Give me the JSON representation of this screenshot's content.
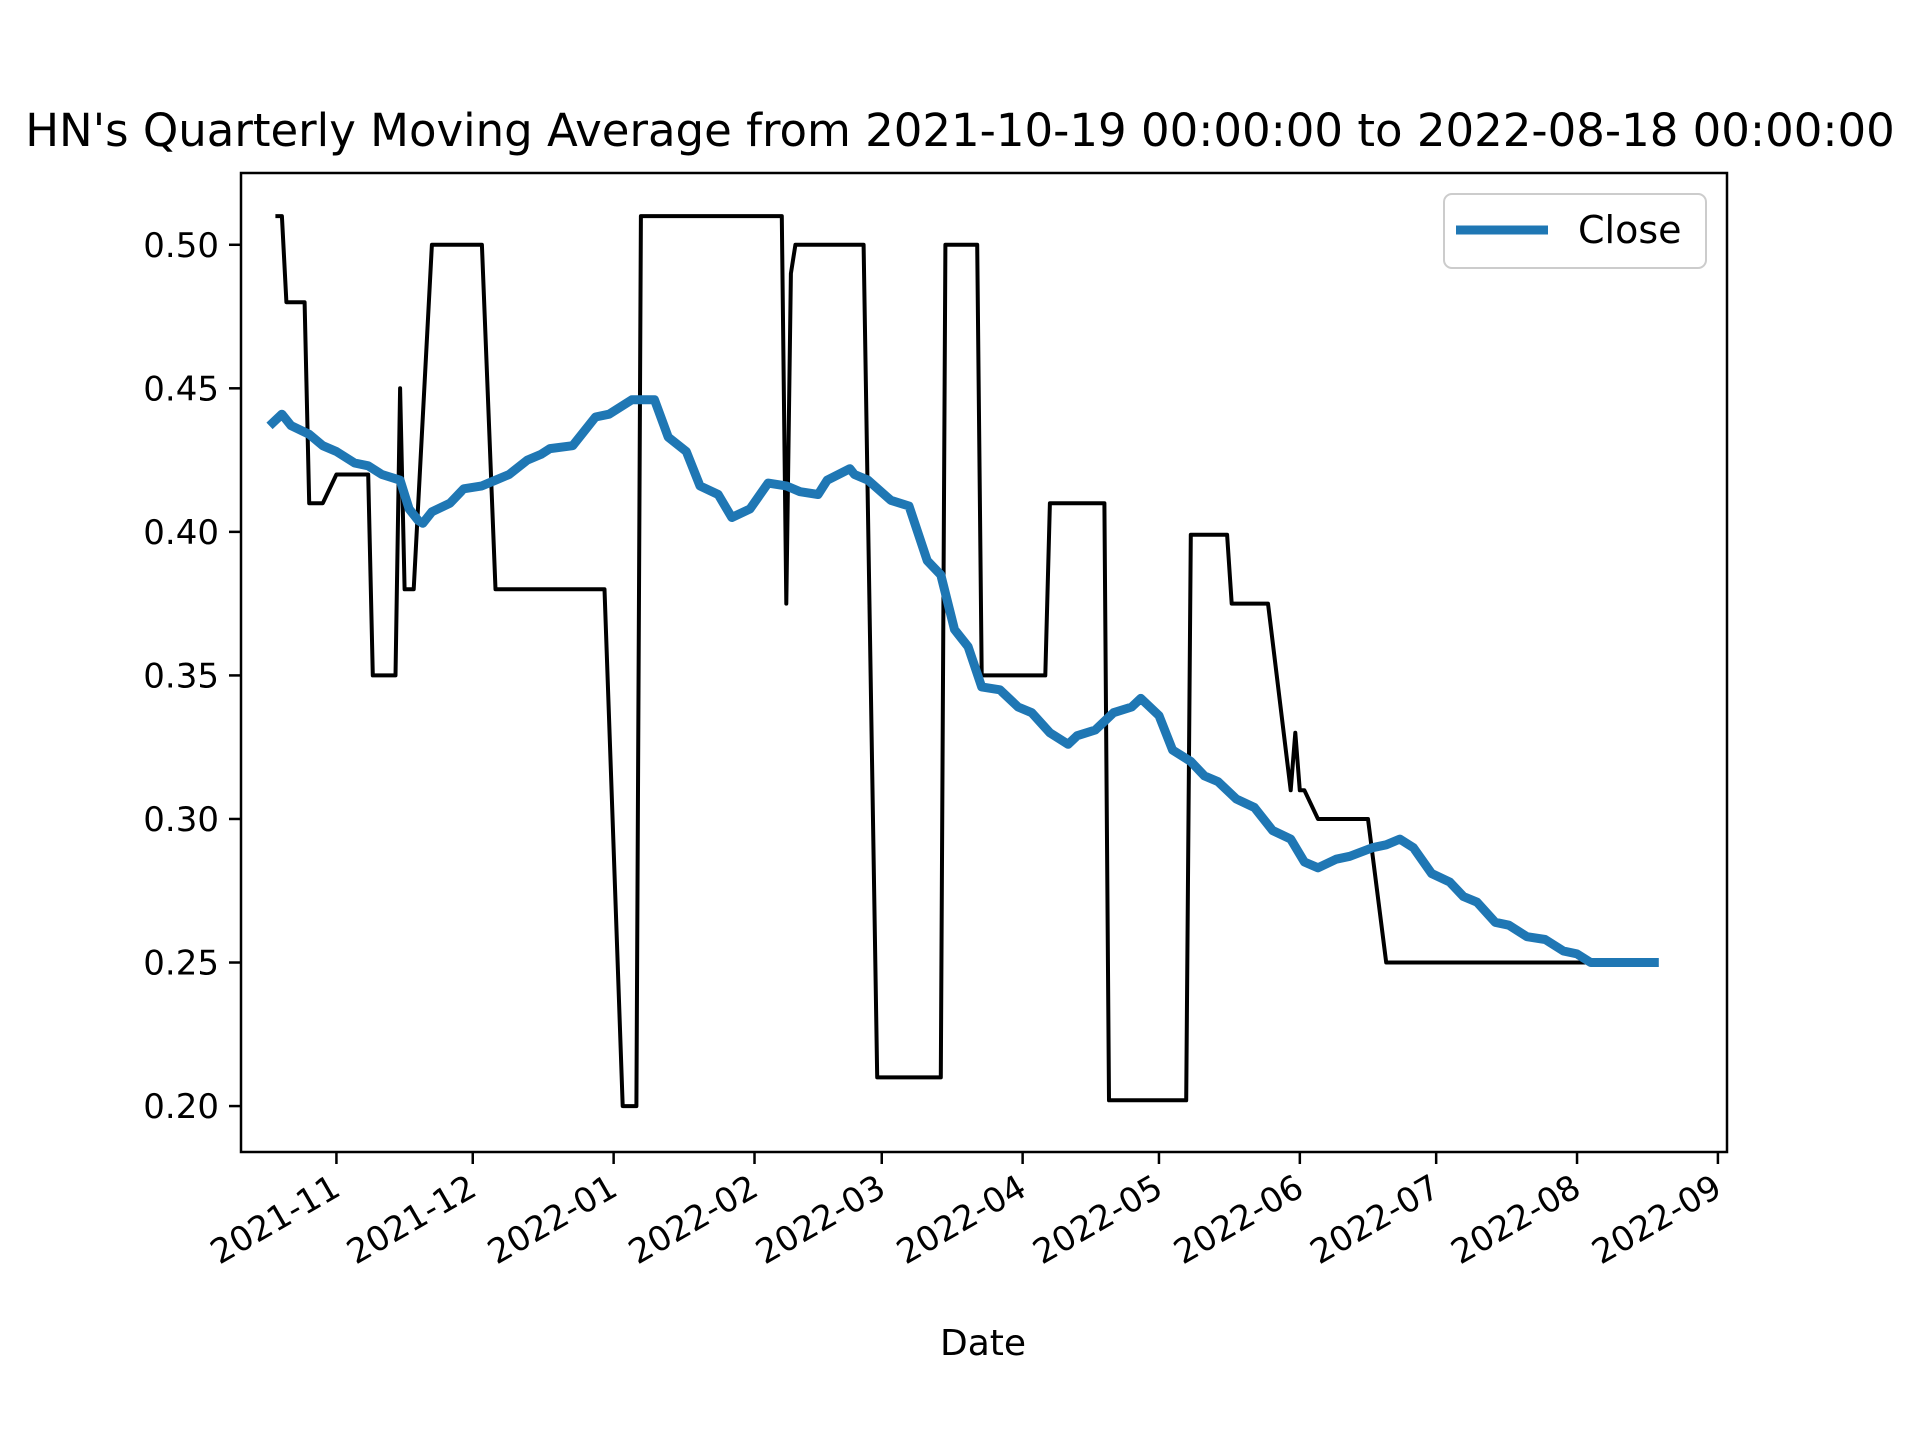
{
  "chart_data": {
    "type": "line",
    "title": "HN's Quarterly Moving Average from 2021-10-19 00:00:00 to 2022-08-18 00:00:00",
    "xlabel": "Date",
    "ylabel": "",
    "xlim": [
      "2021-10-11",
      "2022-09-03"
    ],
    "ylim": [
      0.184,
      0.525
    ],
    "yticks": [
      0.2,
      0.25,
      0.3,
      0.35,
      0.4,
      0.45,
      0.5
    ],
    "ytick_labels": [
      "0.20",
      "0.25",
      "0.30",
      "0.35",
      "0.40",
      "0.45",
      "0.50"
    ],
    "xticks": [
      "2021-11-01",
      "2021-12-01",
      "2022-01-01",
      "2022-02-01",
      "2022-03-01",
      "2022-04-01",
      "2022-05-01",
      "2022-06-01",
      "2022-07-01",
      "2022-08-01",
      "2022-09-01"
    ],
    "xtick_labels": [
      "2021-11",
      "2021-12",
      "2022-01",
      "2022-02",
      "2022-03",
      "2022-04",
      "2022-05",
      "2022-06",
      "2022-07",
      "2022-08",
      "2022-09"
    ],
    "grid": false,
    "legend_position": "upper right",
    "series": [
      {
        "name": "",
        "color": "#000000",
        "legend": false,
        "points": [
          [
            "2021-10-19",
            0.51
          ],
          [
            "2021-10-20",
            0.51
          ],
          [
            "2021-10-21",
            0.48
          ],
          [
            "2021-10-25",
            0.48
          ],
          [
            "2021-10-26",
            0.41
          ],
          [
            "2021-10-29",
            0.41
          ],
          [
            "2021-11-01",
            0.42
          ],
          [
            "2021-11-08",
            0.42
          ],
          [
            "2021-11-09",
            0.35
          ],
          [
            "2021-11-14",
            0.35
          ],
          [
            "2021-11-15",
            0.45
          ],
          [
            "2021-11-16",
            0.38
          ],
          [
            "2021-11-18",
            0.38
          ],
          [
            "2021-11-22",
            0.5
          ],
          [
            "2021-12-03",
            0.5
          ],
          [
            "2021-12-06",
            0.38
          ],
          [
            "2021-12-30",
            0.38
          ],
          [
            "2022-01-03",
            0.2
          ],
          [
            "2022-01-06",
            0.2
          ],
          [
            "2022-01-07",
            0.51
          ],
          [
            "2022-02-07",
            0.51
          ],
          [
            "2022-02-08",
            0.375
          ],
          [
            "2022-02-09",
            0.49
          ],
          [
            "2022-02-10",
            0.5
          ],
          [
            "2022-02-25",
            0.5
          ],
          [
            "2022-02-28",
            0.21
          ],
          [
            "2022-03-14",
            0.21
          ],
          [
            "2022-03-15",
            0.5
          ],
          [
            "2022-03-22",
            0.5
          ],
          [
            "2022-03-23",
            0.35
          ],
          [
            "2022-04-06",
            0.35
          ],
          [
            "2022-04-07",
            0.41
          ],
          [
            "2022-04-19",
            0.41
          ],
          [
            "2022-04-20",
            0.202
          ],
          [
            "2022-05-07",
            0.202
          ],
          [
            "2022-05-08",
            0.399
          ],
          [
            "2022-05-16",
            0.399
          ],
          [
            "2022-05-17",
            0.375
          ],
          [
            "2022-05-25",
            0.375
          ],
          [
            "2022-05-30",
            0.31
          ],
          [
            "2022-05-31",
            0.33
          ],
          [
            "2022-06-01",
            0.31
          ],
          [
            "2022-06-02",
            0.31
          ],
          [
            "2022-06-05",
            0.3
          ],
          [
            "2022-06-16",
            0.3
          ],
          [
            "2022-06-20",
            0.25
          ],
          [
            "2022-08-18",
            0.25
          ]
        ]
      },
      {
        "name": "Close",
        "color": "#1f77b4",
        "legend": true,
        "points": [
          [
            "2021-10-18",
            0.438
          ],
          [
            "2021-10-20",
            0.441
          ],
          [
            "2021-10-22",
            0.437
          ],
          [
            "2021-10-26",
            0.434
          ],
          [
            "2021-10-29",
            0.43
          ],
          [
            "2021-11-01",
            0.428
          ],
          [
            "2021-11-05",
            0.424
          ],
          [
            "2021-11-08",
            0.423
          ],
          [
            "2021-11-11",
            0.42
          ],
          [
            "2021-11-15",
            0.418
          ],
          [
            "2021-11-17",
            0.408
          ],
          [
            "2021-11-19",
            0.404
          ],
          [
            "2021-11-20",
            0.403
          ],
          [
            "2021-11-22",
            0.407
          ],
          [
            "2021-11-26",
            0.41
          ],
          [
            "2021-11-29",
            0.415
          ],
          [
            "2021-12-03",
            0.416
          ],
          [
            "2021-12-06",
            0.418
          ],
          [
            "2021-12-09",
            0.42
          ],
          [
            "2021-12-13",
            0.425
          ],
          [
            "2021-12-16",
            0.427
          ],
          [
            "2021-12-18",
            0.429
          ],
          [
            "2021-12-23",
            0.43
          ],
          [
            "2021-12-28",
            0.44
          ],
          [
            "2021-12-31",
            0.441
          ],
          [
            "2022-01-05",
            0.446
          ],
          [
            "2022-01-10",
            0.446
          ],
          [
            "2022-01-13",
            0.433
          ],
          [
            "2022-01-17",
            0.428
          ],
          [
            "2022-01-20",
            0.416
          ],
          [
            "2022-01-24",
            0.413
          ],
          [
            "2022-01-27",
            0.405
          ],
          [
            "2022-01-31",
            0.408
          ],
          [
            "2022-02-04",
            0.417
          ],
          [
            "2022-02-08",
            0.416
          ],
          [
            "2022-02-11",
            0.414
          ],
          [
            "2022-02-15",
            0.413
          ],
          [
            "2022-02-17",
            0.418
          ],
          [
            "2022-02-22",
            0.422
          ],
          [
            "2022-02-23",
            0.42
          ],
          [
            "2022-02-26",
            0.418
          ],
          [
            "2022-03-03",
            0.411
          ],
          [
            "2022-03-07",
            0.409
          ],
          [
            "2022-03-11",
            0.39
          ],
          [
            "2022-03-14",
            0.385
          ],
          [
            "2022-03-17",
            0.366
          ],
          [
            "2022-03-20",
            0.36
          ],
          [
            "2022-03-23",
            0.346
          ],
          [
            "2022-03-27",
            0.345
          ],
          [
            "2022-03-31",
            0.339
          ],
          [
            "2022-04-03",
            0.337
          ],
          [
            "2022-04-07",
            0.33
          ],
          [
            "2022-04-11",
            0.326
          ],
          [
            "2022-04-13",
            0.329
          ],
          [
            "2022-04-17",
            0.331
          ],
          [
            "2022-04-21",
            0.337
          ],
          [
            "2022-04-25",
            0.339
          ],
          [
            "2022-04-27",
            0.342
          ],
          [
            "2022-04-29",
            0.339
          ],
          [
            "2022-05-01",
            0.336
          ],
          [
            "2022-05-04",
            0.324
          ],
          [
            "2022-05-08",
            0.32
          ],
          [
            "2022-05-11",
            0.315
          ],
          [
            "2022-05-14",
            0.313
          ],
          [
            "2022-05-18",
            0.307
          ],
          [
            "2022-05-22",
            0.304
          ],
          [
            "2022-05-26",
            0.296
          ],
          [
            "2022-05-30",
            0.293
          ],
          [
            "2022-06-02",
            0.285
          ],
          [
            "2022-06-05",
            0.283
          ],
          [
            "2022-06-09",
            0.286
          ],
          [
            "2022-06-12",
            0.287
          ],
          [
            "2022-06-17",
            0.29
          ],
          [
            "2022-06-20",
            0.291
          ],
          [
            "2022-06-23",
            0.293
          ],
          [
            "2022-06-26",
            0.29
          ],
          [
            "2022-06-30",
            0.281
          ],
          [
            "2022-07-04",
            0.278
          ],
          [
            "2022-07-07",
            0.273
          ],
          [
            "2022-07-10",
            0.271
          ],
          [
            "2022-07-14",
            0.264
          ],
          [
            "2022-07-17",
            0.263
          ],
          [
            "2022-07-21",
            0.259
          ],
          [
            "2022-07-25",
            0.258
          ],
          [
            "2022-07-29",
            0.254
          ],
          [
            "2022-08-01",
            0.253
          ],
          [
            "2022-08-04",
            0.25
          ],
          [
            "2022-08-18",
            0.25
          ]
        ]
      }
    ]
  }
}
